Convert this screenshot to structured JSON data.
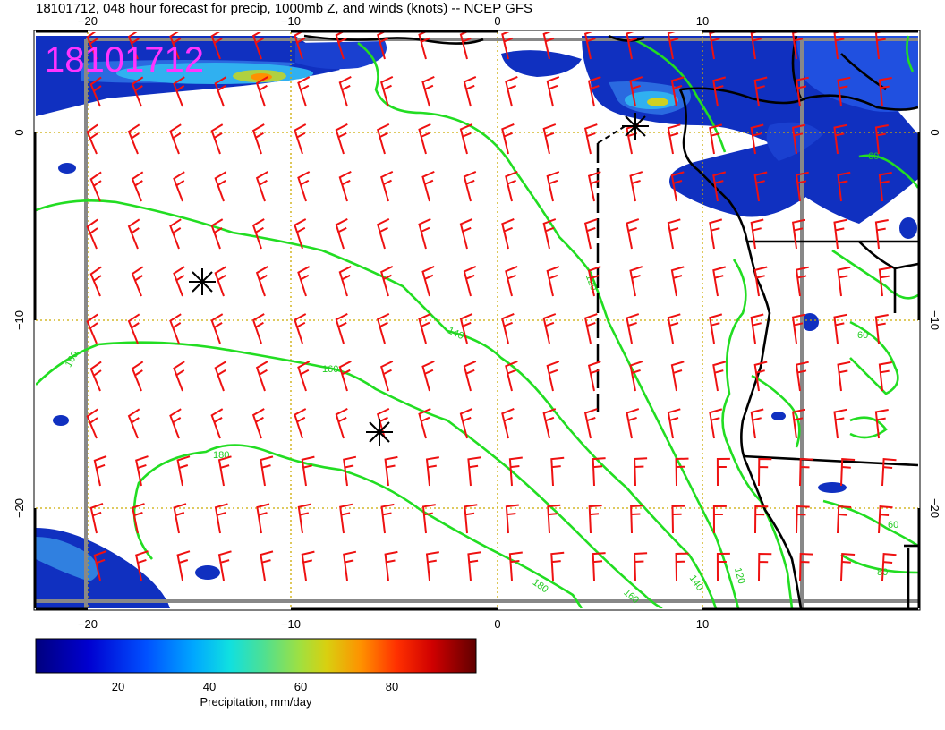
{
  "title": "18101712, 048 hour forecast for precip, 1000mb Z, and winds (knots) -- NCEP GFS",
  "stamp": "18101712",
  "lon_ticks": [
    {
      "value": -20,
      "label": "−20"
    },
    {
      "value": -10,
      "label": "−10"
    },
    {
      "value": 0,
      "label": "0"
    },
    {
      "value": 10,
      "label": "10"
    }
  ],
  "lat_ticks": [
    {
      "value": 0,
      "label": "0"
    },
    {
      "value": -10,
      "label": "−10"
    },
    {
      "value": -20,
      "label": "−20"
    }
  ],
  "colorbar": {
    "label": "Precipitation, mm/day",
    "ticks": [
      {
        "value": 20,
        "label": "20"
      },
      {
        "value": 40,
        "label": "40"
      },
      {
        "value": 60,
        "label": "60"
      },
      {
        "value": 80,
        "label": "80"
      }
    ],
    "range": [
      2,
      98
    ],
    "colors": [
      "#00007f",
      "#0000d0",
      "#0040ff",
      "#00a0ff",
      "#10e0e0",
      "#40e0a0",
      "#90e050",
      "#d0d020",
      "#ffa000",
      "#ff5000",
      "#e00000",
      "#7f0000"
    ]
  },
  "colors": {
    "contour": "#22dd22",
    "barb": "#ee1111",
    "coast": "#000000",
    "grid": "#ccaa00",
    "stamp": "#ff33ff"
  },
  "contour_labels": [
    "180",
    "160",
    "140",
    "120",
    "80",
    "60"
  ],
  "map": {
    "lon_range": [
      -22.5,
      20.5
    ],
    "lat_range": [
      -25.0,
      5.0
    ],
    "grid_lon": [
      -20,
      -10,
      0,
      10
    ],
    "grid_lat": [
      0,
      -10,
      -20
    ]
  }
}
